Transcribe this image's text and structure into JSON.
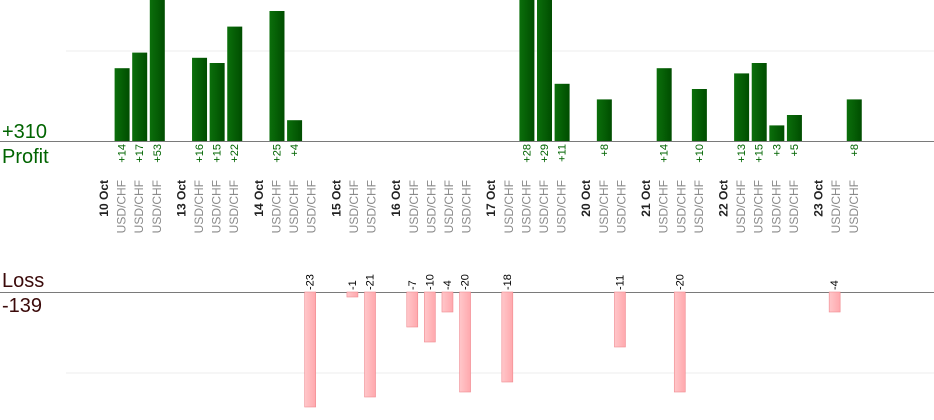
{
  "chart_data": {
    "type": "bar",
    "profit_label": "Profit",
    "profit_total": "+310",
    "loss_label": "Loss",
    "loss_total": "-139",
    "colors": {
      "profit": "#006400",
      "loss": "#ffb6b9",
      "profit_text": "#006400",
      "loss_text": "#000000",
      "date_text": "#222222",
      "symbol_text": "#8a8a8a"
    },
    "groups": [
      {
        "date": "10 Oct",
        "trades": [
          {
            "symbol": "USD/CHF",
            "value": 14
          },
          {
            "symbol": "USD/CHF",
            "value": 17
          },
          {
            "symbol": "USD/CHF",
            "value": 53
          }
        ]
      },
      {
        "date": "13 Oct",
        "trades": [
          {
            "symbol": "USD/CHF",
            "value": 16
          },
          {
            "symbol": "USD/CHF",
            "value": 15
          },
          {
            "symbol": "USD/CHF",
            "value": 22
          }
        ]
      },
      {
        "date": "14 Oct",
        "trades": [
          {
            "symbol": "USD/CHF",
            "value": 25
          },
          {
            "symbol": "USD/CHF",
            "value": 4
          },
          {
            "symbol": "USD/CHF",
            "value": -23
          }
        ]
      },
      {
        "date": "15 Oct",
        "trades": [
          {
            "symbol": "USD/CHF",
            "value": -1
          },
          {
            "symbol": "USD/CHF",
            "value": -21
          }
        ]
      },
      {
        "date": "16 Oct",
        "trades": [
          {
            "symbol": "USD/CHF",
            "value": -7
          },
          {
            "symbol": "USD/CHF",
            "value": -10
          },
          {
            "symbol": "USD/CHF",
            "value": -4
          },
          {
            "symbol": "USD/CHF",
            "value": -20
          }
        ]
      },
      {
        "date": "17 Oct",
        "trades": [
          {
            "symbol": "USD/CHF",
            "value": -18
          },
          {
            "symbol": "USD/CHF",
            "value": 28
          },
          {
            "symbol": "USD/CHF",
            "value": 29
          },
          {
            "symbol": "USD/CHF",
            "value": 11
          }
        ]
      },
      {
        "date": "20 Oct",
        "trades": [
          {
            "symbol": "USD/CHF",
            "value": 8
          },
          {
            "symbol": "USD/CHF",
            "value": -11
          }
        ]
      },
      {
        "date": "21 Oct",
        "trades": [
          {
            "symbol": "USD/CHF",
            "value": 14
          },
          {
            "symbol": "USD/CHF",
            "value": -20
          },
          {
            "symbol": "USD/CHF",
            "value": 10
          }
        ]
      },
      {
        "date": "22 Oct",
        "trades": [
          {
            "symbol": "USD/CHF",
            "value": 13
          },
          {
            "symbol": "USD/CHF",
            "value": 15
          },
          {
            "symbol": "USD/CHF",
            "value": 3
          },
          {
            "symbol": "USD/CHF",
            "value": 5
          }
        ]
      },
      {
        "date": "23 Oct",
        "trades": [
          {
            "symbol": "USD/CHF",
            "value": -4
          },
          {
            "symbol": "USD/CHF",
            "value": 8
          }
        ]
      }
    ],
    "grid": true
  }
}
